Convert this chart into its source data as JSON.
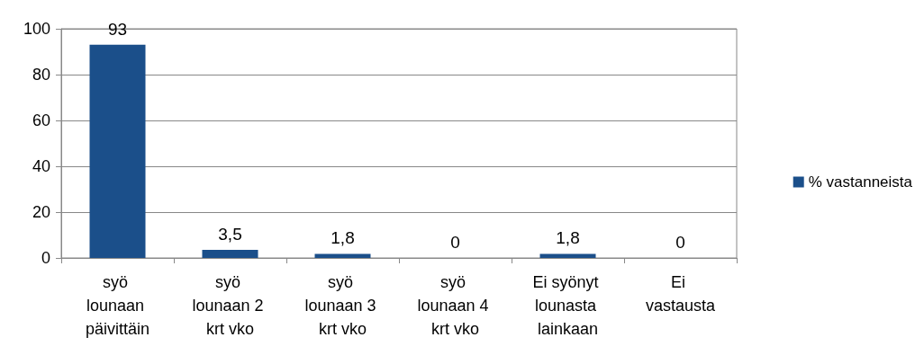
{
  "chart_data": {
    "type": "bar",
    "categories": [
      "syö lounaan päivittäin",
      "syö lounaan 2 krt vko",
      "syö lounaan 3 krt vko",
      "syö lounaan 4 krt vko",
      "Ei syönyt lounasta lainkaan",
      "Ei vastausta"
    ],
    "series": [
      {
        "name": "% vastanneista",
        "color": "#1b4f8a",
        "values": [
          93,
          3.5,
          1.8,
          0,
          1.8,
          0
        ],
        "value_labels": [
          "93",
          "3,5",
          "1,8",
          "0",
          "1,8",
          "0"
        ]
      }
    ],
    "ylim": [
      0,
      100
    ],
    "yticks": [
      0,
      20,
      40,
      60,
      80,
      100
    ],
    "grid": "y",
    "legend": "right"
  }
}
